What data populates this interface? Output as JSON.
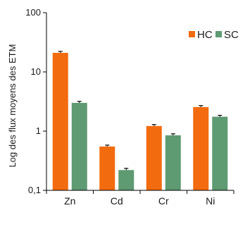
{
  "chart_data": {
    "type": "bar",
    "title": "",
    "xlabel": "",
    "ylabel": "Log des flux moyens des ETM",
    "yscale": "log",
    "ylim": [
      0.1,
      100
    ],
    "yticks": [
      "0,1",
      "1",
      "10",
      "100"
    ],
    "categories": [
      "Zn",
      "Cd",
      "Cr",
      "Ni"
    ],
    "series": [
      {
        "name": "HC",
        "color": "#f26b0f",
        "values": [
          21,
          0.55,
          1.22,
          2.55
        ],
        "errors": [
          1.2,
          0.03,
          0.07,
          0.15
        ]
      },
      {
        "name": "SC",
        "color": "#5e9a72",
        "values": [
          3.0,
          0.22,
          0.85,
          1.75
        ],
        "errors": [
          0.18,
          0.015,
          0.05,
          0.1
        ]
      }
    ],
    "legend_position": "top-right",
    "grid": false
  }
}
